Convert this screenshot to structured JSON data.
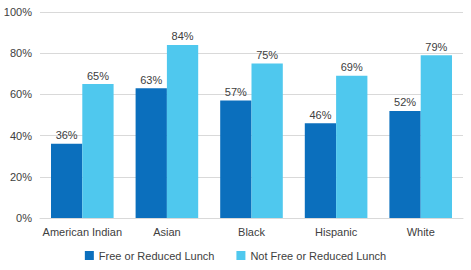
{
  "chart_data": {
    "type": "bar",
    "categories": [
      "American Indian",
      "Asian",
      "Black",
      "Hispanic",
      "White"
    ],
    "series": [
      {
        "name": "Free or Reduced Lunch",
        "color": "#0b6fbd",
        "values": [
          36,
          63,
          57,
          46,
          52
        ],
        "value_labels": [
          "36%",
          "63%",
          "57%",
          "46%",
          "52%"
        ]
      },
      {
        "name": "Not Free or Reduced Lunch",
        "color": "#4fc8ee",
        "values": [
          65,
          84,
          75,
          69,
          79
        ],
        "value_labels": [
          "65%",
          "84%",
          "75%",
          "69%",
          "79%"
        ]
      }
    ],
    "ylim": [
      0,
      100
    ],
    "yticks": [
      {
        "value": 0,
        "label": "0%"
      },
      {
        "value": 20,
        "label": "20%"
      },
      {
        "value": 40,
        "label": "40%"
      },
      {
        "value": 60,
        "label": "60%"
      },
      {
        "value": 80,
        "label": "80%"
      },
      {
        "value": 100,
        "label": "100%"
      }
    ],
    "grid": true,
    "legend": "bottom",
    "data_labels": true
  }
}
